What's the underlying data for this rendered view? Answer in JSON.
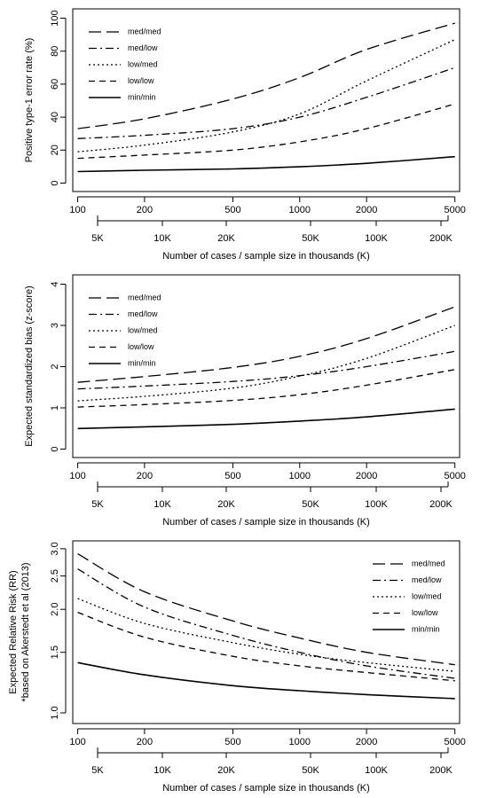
{
  "chart_data": [
    {
      "type": "line",
      "ylabel": "Positive type-1 error rate (%)",
      "xlabel": "Number of cases / sample size in thousands (K)",
      "x_scale": "log",
      "xlim": [
        100,
        5000
      ],
      "ylim": [
        0,
        100
      ],
      "x_ticks": [
        "100",
        "200",
        "500",
        "1000",
        "2000",
        "5000"
      ],
      "x_ticks_k": [
        "5K",
        "10K",
        "20K",
        "50K",
        "100K",
        "200K"
      ],
      "y_ticks": [
        "0",
        "20",
        "40",
        "60",
        "80",
        "100"
      ],
      "legend_position": "top-left",
      "x": [
        100,
        200,
        500,
        1000,
        2000,
        5000
      ],
      "series": [
        {
          "name": "med/med",
          "dash": "long-dash",
          "values": [
            33,
            39,
            51,
            64,
            81,
            97
          ]
        },
        {
          "name": "med/low",
          "dash": "dash-dot",
          "values": [
            27,
            29,
            33,
            40,
            52,
            70
          ]
        },
        {
          "name": "low/med",
          "dash": "dotted",
          "values": [
            19,
            23,
            31,
            42,
            62,
            87
          ]
        },
        {
          "name": "low/low",
          "dash": "dashed",
          "values": [
            15,
            17,
            20,
            25,
            33,
            48
          ]
        },
        {
          "name": "min/min",
          "dash": "solid",
          "values": [
            7,
            7.8,
            8.6,
            9.9,
            12,
            16
          ]
        }
      ]
    },
    {
      "type": "line",
      "ylabel": "Expected standardized bias (z-score)",
      "xlabel": "Number of cases / sample size in thousands (K)",
      "x_scale": "log",
      "xlim": [
        100,
        5000
      ],
      "ylim": [
        0,
        4
      ],
      "x_ticks": [
        "100",
        "200",
        "500",
        "1000",
        "2000",
        "5000"
      ],
      "x_ticks_k": [
        "5K",
        "10K",
        "20K",
        "50K",
        "100K",
        "200K"
      ],
      "y_ticks": [
        "0",
        "1",
        "2",
        "3",
        "4"
      ],
      "legend_position": "top-left",
      "x": [
        100,
        200,
        500,
        1000,
        2000,
        5000
      ],
      "series": [
        {
          "name": "med/med",
          "dash": "long-dash",
          "values": [
            1.62,
            1.76,
            1.98,
            2.25,
            2.68,
            3.45
          ]
        },
        {
          "name": "med/low",
          "dash": "dash-dot",
          "values": [
            1.46,
            1.53,
            1.64,
            1.78,
            2.0,
            2.37
          ]
        },
        {
          "name": "low/med",
          "dash": "dotted",
          "values": [
            1.17,
            1.28,
            1.48,
            1.77,
            2.2,
            3.0
          ]
        },
        {
          "name": "low/low",
          "dash": "dashed",
          "values": [
            1.02,
            1.08,
            1.18,
            1.32,
            1.55,
            1.93
          ]
        },
        {
          "name": "min/min",
          "dash": "solid",
          "values": [
            0.5,
            0.54,
            0.6,
            0.68,
            0.78,
            0.97
          ]
        }
      ]
    },
    {
      "type": "line",
      "ylabel": "Expected Relative Risk (RR)",
      "ylabel2": "*based on Akerstedt et al (2013)",
      "xlabel": "Number of cases / sample size in thousands (K)",
      "x_scale": "log",
      "y_scale": "log",
      "xlim": [
        100,
        5000
      ],
      "ylim": [
        1.0,
        3.0
      ],
      "x_ticks": [
        "100",
        "200",
        "500",
        "1000",
        "2000",
        "5000"
      ],
      "x_ticks_k": [
        "5K",
        "10K",
        "20K",
        "50K",
        "100K",
        "200K"
      ],
      "y_ticks": [
        "1.0",
        "1.5",
        "2.0",
        "2.5",
        "3.0"
      ],
      "legend_position": "top-right",
      "x": [
        100,
        200,
        500,
        1000,
        2000,
        5000
      ],
      "series": [
        {
          "name": "med/med",
          "dash": "long-dash",
          "values": [
            2.9,
            2.25,
            1.85,
            1.65,
            1.5,
            1.38
          ]
        },
        {
          "name": "med/low",
          "dash": "dash-dot",
          "values": [
            2.62,
            2.03,
            1.68,
            1.5,
            1.37,
            1.26
          ]
        },
        {
          "name": "low/med",
          "dash": "dotted",
          "values": [
            2.15,
            1.82,
            1.6,
            1.48,
            1.4,
            1.32
          ]
        },
        {
          "name": "low/low",
          "dash": "dashed",
          "values": [
            1.96,
            1.66,
            1.46,
            1.37,
            1.31,
            1.24
          ]
        },
        {
          "name": "min/min",
          "dash": "solid",
          "values": [
            1.4,
            1.29,
            1.2,
            1.16,
            1.13,
            1.1
          ]
        }
      ]
    }
  ]
}
